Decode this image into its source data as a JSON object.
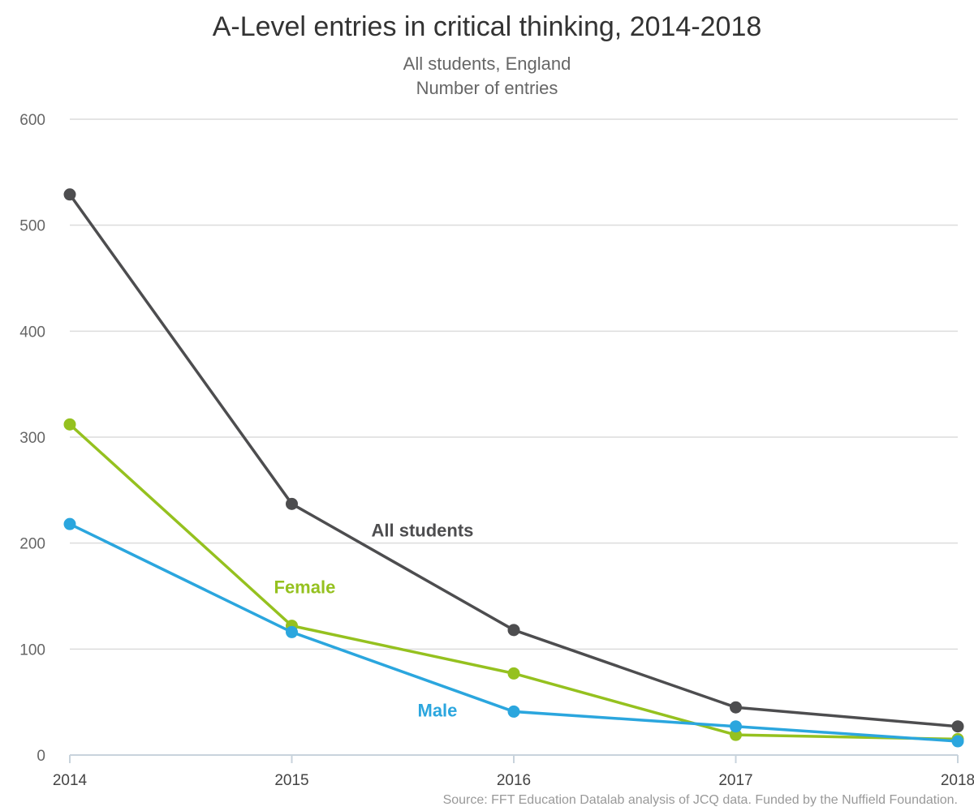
{
  "title": "A-Level entries in critical thinking, 2014-2018",
  "subtitle_line1": "All students, England",
  "subtitle_line2": "Number of entries",
  "source": "Source: FFT Education Datalab analysis of JCQ data. Funded by the Nuffield Foundation.",
  "chart_data": {
    "type": "line",
    "title": "A-Level entries in critical thinking, 2014-2018",
    "subtitle": "All students, England / Number of entries",
    "x": [
      "2014",
      "2015",
      "2016",
      "2017",
      "2018"
    ],
    "ylim": [
      0,
      600
    ],
    "yticks": [
      0,
      100,
      200,
      300,
      400,
      500,
      600
    ],
    "grid": true,
    "series": [
      {
        "name": "All students",
        "color": "#4d4d4f",
        "values": [
          529,
          237,
          118,
          45,
          27
        ]
      },
      {
        "name": "Female",
        "color": "#95c11f",
        "values": [
          312,
          122,
          77,
          19,
          15
        ]
      },
      {
        "name": "Male",
        "color": "#2ba6de",
        "values": [
          218,
          116,
          41,
          27,
          13
        ]
      }
    ]
  }
}
